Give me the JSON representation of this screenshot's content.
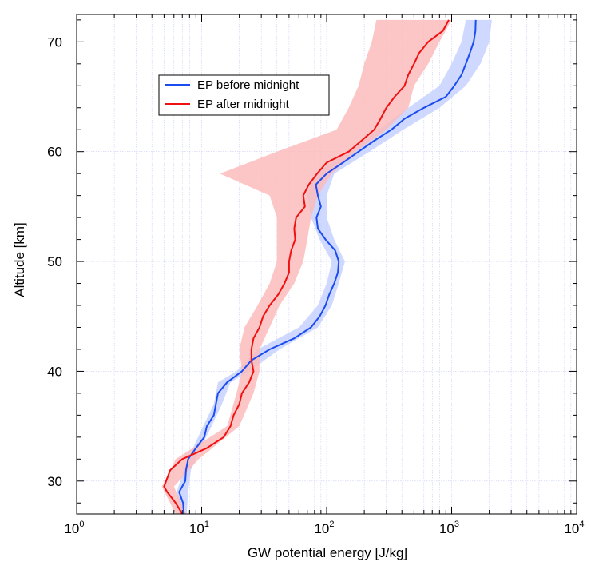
{
  "chart_data": {
    "type": "line",
    "xlabel": "GW potential energy [J/kg]",
    "ylabel": "Altitude [km]",
    "xscale": "log",
    "xlim": [
      1,
      10000
    ],
    "ylim": [
      27,
      72.5
    ],
    "grid": true,
    "legend": "top-left",
    "x_ticks": [
      {
        "base": "10",
        "exp": "0",
        "value": 1
      },
      {
        "base": "10",
        "exp": "1",
        "value": 10
      },
      {
        "base": "10",
        "exp": "2",
        "value": 100
      },
      {
        "base": "10",
        "exp": "3",
        "value": 1000
      },
      {
        "base": "10",
        "exp": "4",
        "value": 10000
      }
    ],
    "y_ticks": [
      "30",
      "40",
      "50",
      "60",
      "70"
    ],
    "series": [
      {
        "name": "EP before midnight",
        "color": "#1a4cf0",
        "band_color": "#c5d0ff",
        "points": [
          [
            7.2,
            27
          ],
          [
            7.1,
            28
          ],
          [
            6.6,
            29
          ],
          [
            7.4,
            30
          ],
          [
            7.5,
            31
          ],
          [
            7.8,
            32
          ],
          [
            9,
            33
          ],
          [
            10.5,
            34
          ],
          [
            11,
            35
          ],
          [
            12.5,
            36
          ],
          [
            13,
            37
          ],
          [
            13.5,
            38
          ],
          [
            16,
            39
          ],
          [
            21,
            40
          ],
          [
            25,
            41
          ],
          [
            35,
            42
          ],
          [
            55,
            43
          ],
          [
            75,
            44
          ],
          [
            88,
            45
          ],
          [
            98,
            46
          ],
          [
            105,
            47
          ],
          [
            115,
            48
          ],
          [
            123,
            49
          ],
          [
            125,
            50
          ],
          [
            117,
            51
          ],
          [
            98,
            52
          ],
          [
            85,
            53
          ],
          [
            83,
            54
          ],
          [
            90,
            55
          ],
          [
            85,
            56
          ],
          [
            82,
            57
          ],
          [
            100,
            58
          ],
          [
            135,
            59
          ],
          [
            180,
            60
          ],
          [
            240,
            61
          ],
          [
            330,
            62
          ],
          [
            420,
            63
          ],
          [
            600,
            64
          ],
          [
            900,
            65
          ],
          [
            1050,
            66
          ],
          [
            1200,
            67
          ],
          [
            1300,
            68
          ],
          [
            1400,
            69
          ],
          [
            1500,
            70
          ],
          [
            1550,
            71
          ],
          [
            1560,
            72
          ]
        ],
        "band": [
          [
            6.6,
            7.6,
            27
          ],
          [
            6.3,
            7.8,
            29
          ],
          [
            7.2,
            8.2,
            31
          ],
          [
            8.5,
            9.8,
            33
          ],
          [
            10.3,
            12,
            35
          ],
          [
            12.5,
            14.5,
            37
          ],
          [
            13.5,
            17,
            39
          ],
          [
            19,
            24,
            40
          ],
          [
            28,
            42,
            42
          ],
          [
            60,
            85,
            44
          ],
          [
            85,
            110,
            46
          ],
          [
            100,
            125,
            48
          ],
          [
            110,
            140,
            50
          ],
          [
            88,
            115,
            52
          ],
          [
            75,
            100,
            54
          ],
          [
            70,
            100,
            56
          ],
          [
            80,
            115,
            58
          ],
          [
            150,
            220,
            60
          ],
          [
            260,
            410,
            62
          ],
          [
            450,
            800,
            64
          ],
          [
            800,
            1300,
            66
          ],
          [
            1000,
            1700,
            68
          ],
          [
            1200,
            2000,
            70
          ],
          [
            1300,
            2100,
            72
          ]
        ]
      },
      {
        "name": "EP after midnight",
        "color": "#f01010",
        "band_color": "#fcb9b9",
        "points": [
          [
            7,
            27
          ],
          [
            6.2,
            28
          ],
          [
            5.3,
            29
          ],
          [
            5,
            29.5
          ],
          [
            5.6,
            31
          ],
          [
            7,
            32
          ],
          [
            11,
            33
          ],
          [
            15,
            34
          ],
          [
            17,
            35
          ],
          [
            18,
            36
          ],
          [
            20,
            37
          ],
          [
            21,
            38
          ],
          [
            24,
            39
          ],
          [
            26,
            40
          ],
          [
            25,
            41
          ],
          [
            25,
            42
          ],
          [
            26,
            43
          ],
          [
            29,
            44
          ],
          [
            31,
            45
          ],
          [
            35,
            46
          ],
          [
            41,
            47
          ],
          [
            46,
            48
          ],
          [
            50,
            49
          ],
          [
            50,
            50
          ],
          [
            52,
            51
          ],
          [
            56,
            52
          ],
          [
            55,
            53
          ],
          [
            57,
            54
          ],
          [
            67,
            55
          ],
          [
            65,
            56
          ],
          [
            72,
            57
          ],
          [
            84,
            58
          ],
          [
            100,
            59
          ],
          [
            150,
            60
          ],
          [
            190,
            61
          ],
          [
            240,
            62
          ],
          [
            270,
            63
          ],
          [
            300,
            64
          ],
          [
            350,
            65
          ],
          [
            420,
            66
          ],
          [
            450,
            67
          ],
          [
            500,
            68
          ],
          [
            550,
            69
          ],
          [
            650,
            70
          ],
          [
            850,
            71
          ],
          [
            950,
            72
          ]
        ],
        "band": [
          [
            6.2,
            7.5,
            27
          ],
          [
            4.8,
            6,
            29.5
          ],
          [
            6.2,
            9.5,
            32
          ],
          [
            16,
            20,
            35
          ],
          [
            19,
            26,
            38
          ],
          [
            21,
            29,
            40
          ],
          [
            20,
            29,
            42
          ],
          [
            22,
            35,
            44
          ],
          [
            28,
            42,
            46
          ],
          [
            35,
            55,
            48
          ],
          [
            40,
            65,
            50
          ],
          [
            40,
            70,
            52
          ],
          [
            40,
            75,
            54
          ],
          [
            35,
            85,
            56
          ],
          [
            14,
            110,
            58
          ],
          [
            40,
            170,
            60
          ],
          [
            120,
            300,
            62
          ],
          [
            150,
            450,
            64
          ],
          [
            180,
            500,
            66
          ],
          [
            200,
            650,
            68
          ],
          [
            230,
            800,
            70
          ],
          [
            250,
            1000,
            72
          ]
        ]
      }
    ]
  }
}
